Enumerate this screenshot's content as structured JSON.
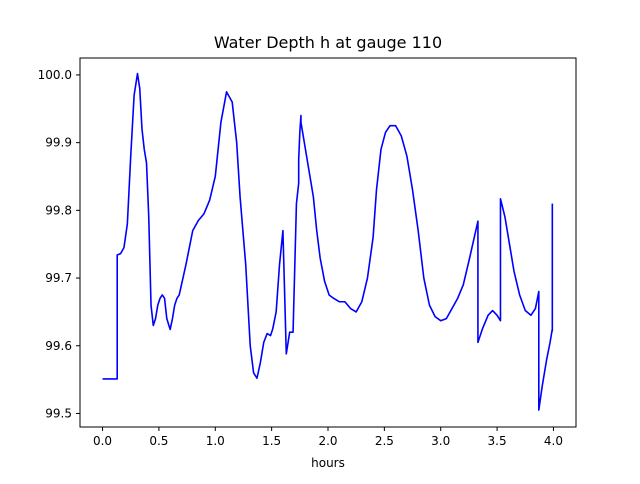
{
  "chart_data": {
    "type": "line",
    "title": "Water Depth h at gauge 110",
    "xlabel": "hours",
    "ylabel": "",
    "xlim": [
      -0.2,
      4.2
    ],
    "ylim": [
      99.48,
      100.025
    ],
    "grid": false,
    "xticks": [
      0.0,
      0.5,
      1.0,
      1.5,
      2.0,
      2.5,
      3.0,
      3.5,
      4.0
    ],
    "xtick_labels": [
      "0.0",
      "0.5",
      "1.0",
      "1.5",
      "2.0",
      "2.5",
      "3.0",
      "3.5",
      "4.0"
    ],
    "yticks": [
      99.5,
      99.6,
      99.7,
      99.8,
      99.9,
      100.0
    ],
    "ytick_labels": [
      "99.5",
      "99.6",
      "99.7",
      "99.8",
      "99.9",
      "100.0"
    ],
    "series": [
      {
        "color": "#0000ff",
        "x": [
          0.0,
          0.06,
          0.13,
          0.13,
          0.16,
          0.19,
          0.22,
          0.25,
          0.28,
          0.31,
          0.33,
          0.35,
          0.37,
          0.39,
          0.41,
          0.43,
          0.45,
          0.47,
          0.49,
          0.51,
          0.53,
          0.55,
          0.57,
          0.6,
          0.62,
          0.64,
          0.66,
          0.68,
          0.7,
          0.72,
          0.74,
          0.77,
          0.8,
          0.85,
          0.9,
          0.95,
          1.0,
          1.05,
          1.1,
          1.15,
          1.19,
          1.22,
          1.25,
          1.27,
          1.29,
          1.31,
          1.34,
          1.37,
          1.4,
          1.43,
          1.46,
          1.49,
          1.51,
          1.54,
          1.57,
          1.6,
          1.63,
          1.66,
          1.69,
          1.72,
          1.74,
          1.74,
          1.75,
          1.76,
          1.76,
          1.79,
          1.83,
          1.87,
          1.9,
          1.93,
          1.97,
          2.01,
          2.05,
          2.1,
          2.15,
          2.2,
          2.25,
          2.3,
          2.35,
          2.4,
          2.43,
          2.47,
          2.51,
          2.55,
          2.6,
          2.65,
          2.7,
          2.75,
          2.8,
          2.85,
          2.9,
          2.95,
          3.0,
          3.05,
          3.1,
          3.15,
          3.2,
          3.25,
          3.3,
          3.33,
          3.33,
          3.37,
          3.42,
          3.46,
          3.5,
          3.53,
          3.53,
          3.57,
          3.61,
          3.65,
          3.7,
          3.75,
          3.8,
          3.84,
          3.87,
          3.87,
          3.9,
          3.94,
          3.97,
          3.99,
          3.99,
          3.99
        ],
        "y": [
          99.551,
          99.551,
          99.551,
          99.734,
          99.736,
          99.745,
          99.78,
          99.88,
          99.97,
          100.002,
          99.98,
          99.92,
          99.89,
          99.87,
          99.79,
          99.66,
          99.63,
          99.64,
          99.66,
          99.67,
          99.675,
          99.67,
          99.64,
          99.624,
          99.64,
          99.66,
          99.67,
          99.675,
          99.69,
          99.705,
          99.72,
          99.745,
          99.77,
          99.785,
          99.795,
          99.815,
          99.85,
          99.93,
          99.975,
          99.96,
          99.9,
          99.82,
          99.76,
          99.72,
          99.66,
          99.6,
          99.56,
          99.552,
          99.575,
          99.605,
          99.618,
          99.615,
          99.625,
          99.65,
          99.72,
          99.77,
          99.588,
          99.62,
          99.62,
          99.81,
          99.84,
          99.875,
          99.915,
          99.94,
          99.93,
          99.9,
          99.86,
          99.82,
          99.77,
          99.73,
          99.695,
          99.675,
          99.67,
          99.665,
          99.665,
          99.655,
          99.65,
          99.665,
          99.7,
          99.76,
          99.83,
          99.89,
          99.915,
          99.925,
          99.925,
          99.91,
          99.88,
          99.83,
          99.77,
          99.7,
          99.66,
          99.643,
          99.637,
          99.64,
          99.655,
          99.67,
          99.69,
          99.725,
          99.762,
          99.784,
          99.605,
          99.625,
          99.645,
          99.652,
          99.645,
          99.637,
          99.817,
          99.79,
          99.75,
          99.71,
          99.675,
          99.652,
          99.645,
          99.655,
          99.68,
          99.505,
          99.54,
          99.58,
          99.605,
          99.625,
          99.622,
          99.81
        ]
      }
    ]
  }
}
